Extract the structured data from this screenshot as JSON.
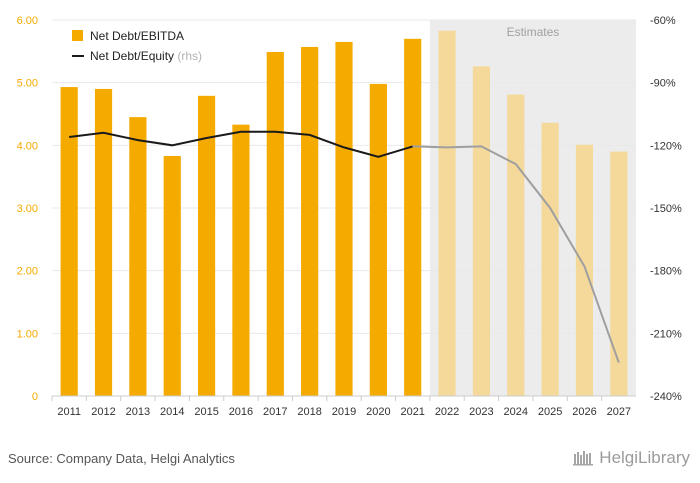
{
  "chart_data": {
    "type": "bar",
    "categories": [
      "2011",
      "2012",
      "2013",
      "2014",
      "2015",
      "2016",
      "2017",
      "2018",
      "2019",
      "2020",
      "2021",
      "2022",
      "2023",
      "2024",
      "2025",
      "2026",
      "2027"
    ],
    "estimate_start_index": 11,
    "estimates_label": "Estimates",
    "series": [
      {
        "name": "Net Debt/EBITDA",
        "type": "bar",
        "axis": "left",
        "values": [
          4.93,
          4.9,
          4.45,
          3.83,
          4.79,
          4.33,
          5.49,
          5.57,
          5.65,
          4.98,
          5.7,
          5.83,
          5.26,
          4.81,
          4.36,
          4.01,
          3.9
        ]
      },
      {
        "name": "Net Debt/Equity",
        "name_suffix": "(rhs)",
        "type": "line",
        "axis": "right",
        "values": [
          -116,
          -114,
          -117.5,
          -120,
          -116.5,
          -113.5,
          -113.5,
          -115,
          -121,
          -125.5,
          -120.5,
          -121,
          -120.5,
          -129,
          -150,
          -178,
          -224
        ]
      }
    ],
    "y_left": {
      "ticks": [
        "6.00",
        "5.00",
        "4.00",
        "3.00",
        "2.00",
        "1.00",
        "0"
      ],
      "range": [
        0,
        6
      ]
    },
    "y_right": {
      "ticks": [
        "-60%",
        "-90%",
        "-120%",
        "-150%",
        "-180%",
        "-210%",
        "-240%"
      ],
      "range": [
        -240,
        -60
      ]
    },
    "grid": true,
    "legend_position": "top-left",
    "colors": {
      "bar_actual": "#f5aa00",
      "bar_estimate": "#f5d99b",
      "line_actual": "#1a1a1a",
      "line_estimate": "#9f9f9f",
      "estimate_shade": "#ececec",
      "grid": "#e9e9e9"
    }
  },
  "footer": {
    "source": "Source: Company Data, Helgi Analytics",
    "logo_text": "HelgiLibrary"
  }
}
